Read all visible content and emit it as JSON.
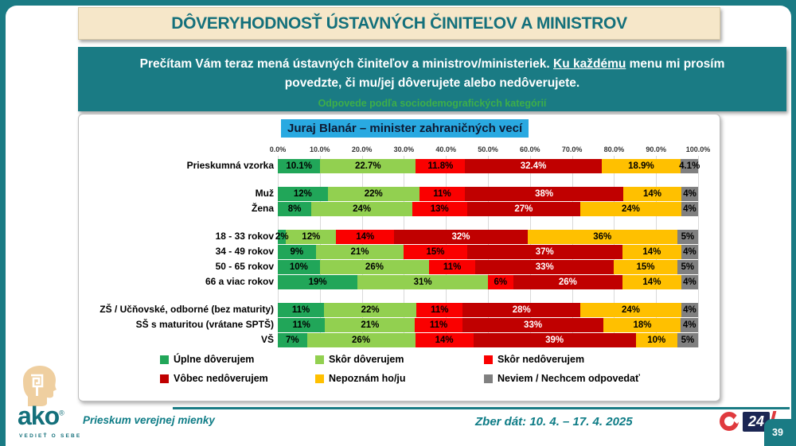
{
  "title": "DÔVERYHODNOSŤ ÚSTAVNÝCH ČINITEĽOV A MINISTROV",
  "question": {
    "text_before": "Prečítam Vám teraz mená ústavných činiteľov a ministrov/ministeriek. ",
    "text_underlined": "Ku každému",
    "text_after": " menu mi prosím povedzte, či mu/jej dôverujete alebo nedôverujete.",
    "subtitle": "Odpovede podľa sociodemografických kategórií"
  },
  "chart_data": {
    "type": "bar",
    "variant": "horizontal-stacked-percent",
    "title": "Juraj Blanár – minister zahraničných vecí",
    "xlabel": "",
    "ylabel": "",
    "axis_range": [
      0,
      100
    ],
    "axis_ticks": [
      "0.0%",
      "10.0%",
      "20.0%",
      "30.0%",
      "40.0%",
      "50.0%",
      "60.0%",
      "70.0%",
      "80.0%",
      "90.0%",
      "100.0%"
    ],
    "grid": true,
    "legend_position": "bottom",
    "series": [
      {
        "name": "Úplne dôverujem",
        "color": "#21A659",
        "text_color": "#000000"
      },
      {
        "name": "Skôr dôverujem",
        "color": "#92D050",
        "text_color": "#000000"
      },
      {
        "name": "Skôr nedôverujem",
        "color": "#FA0000",
        "text_color": "#000000"
      },
      {
        "name": "Vôbec nedôverujem",
        "color": "#C00000",
        "text_color": "#FFFFFF"
      },
      {
        "name": "Nepoznám ho/ju",
        "color": "#FFC000",
        "text_color": "#000000"
      },
      {
        "name": "Neviem / Nechcem odpovedať",
        "color": "#808080",
        "text_color": "#000000"
      }
    ],
    "groups": [
      {
        "name": "total",
        "rows": [
          {
            "label": "Prieskumná vzorka",
            "values": [
              10.1,
              22.7,
              11.8,
              32.4,
              18.9,
              4.1
            ],
            "value_labels": [
              "10.1%",
              "22.7%",
              "11.8%",
              "32.4%",
              "18.9%",
              "4.1%"
            ]
          }
        ]
      },
      {
        "name": "gender",
        "rows": [
          {
            "label": "Muž",
            "values": [
              12,
              22,
              11,
              38,
              14,
              4
            ],
            "value_labels": [
              "12%",
              "22%",
              "11%",
              "38%",
              "14%",
              "4%"
            ]
          },
          {
            "label": "Žena",
            "values": [
              8,
              24,
              13,
              27,
              24,
              4
            ],
            "value_labels": [
              "8%",
              "24%",
              "13%",
              "27%",
              "24%",
              "4%"
            ]
          }
        ]
      },
      {
        "name": "age",
        "rows": [
          {
            "label": "18 - 33 rokov",
            "values": [
              2,
              12,
              14,
              32,
              36,
              5
            ],
            "value_labels": [
              "2%",
              "12%",
              "14%",
              "32%",
              "36%",
              "5%"
            ]
          },
          {
            "label": "34 - 49 rokov",
            "values": [
              9,
              21,
              15,
              37,
              14,
              4
            ],
            "value_labels": [
              "9%",
              "21%",
              "15%",
              "37%",
              "14%",
              "4%"
            ]
          },
          {
            "label": "50 - 65 rokov",
            "values": [
              10,
              26,
              11,
              33,
              15,
              5
            ],
            "value_labels": [
              "10%",
              "26%",
              "11%",
              "33%",
              "15%",
              "5%"
            ]
          },
          {
            "label": "66 a viac rokov",
            "values": [
              19,
              31,
              6,
              26,
              14,
              4
            ],
            "value_labels": [
              "19%",
              "31%",
              "6%",
              "26%",
              "14%",
              "4%"
            ]
          }
        ]
      },
      {
        "name": "education",
        "rows": [
          {
            "label": "ZŠ / Učňovské, odborné (bez maturity)",
            "values": [
              11,
              22,
              11,
              28,
              24,
              4
            ],
            "value_labels": [
              "11%",
              "22%",
              "11%",
              "28%",
              "24%",
              "4%"
            ]
          },
          {
            "label": "SŠ s maturitou (vrátane SPTŠ)",
            "values": [
              11,
              21,
              11,
              33,
              18,
              4
            ],
            "value_labels": [
              "11%",
              "21%",
              "11%",
              "33%",
              "18%",
              "4%"
            ]
          },
          {
            "label": "VŠ",
            "values": [
              7,
              26,
              14,
              39,
              10,
              5
            ],
            "value_labels": [
              "7%",
              "26%",
              "14%",
              "39%",
              "10%",
              "5%"
            ]
          }
        ]
      }
    ]
  },
  "footer": {
    "brand": "ako",
    "brand_reg": "®",
    "brand_tagline": "VEDIEŤ O SEBE",
    "left_text": "Prieskum verejnej mienky",
    "right_text": "Zber dát: 10. 4. – 17. 4. 2025",
    "channel_number": "24",
    "page_number": "39"
  },
  "colors": {
    "frame_teal": "#1A7B84",
    "title_bg_cream": "#F6E7C9",
    "title_text_teal": "#14707B",
    "chart_title_bg_blue": "#29A9E1",
    "subtitle_green": "#3DAE49",
    "gridline": "#D9D9D9",
    "footer_text_teal": "#0E7C86",
    "logo_beige": "#EFCFA0",
    "channel_red": "#E03A3E",
    "channel_navy": "#1B2653"
  }
}
